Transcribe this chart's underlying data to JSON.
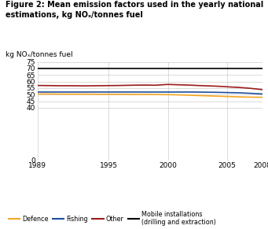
{
  "title": "Figure 2: Mean emission factors used in the yearly national\nestimations, kg NOₓ/tonnes fuel",
  "axis_label": "kg NOₓ/tonnes fuel",
  "xlim": [
    1989,
    2008
  ],
  "ylim": [
    0,
    75
  ],
  "yticks": [
    0,
    40,
    45,
    50,
    55,
    60,
    65,
    70,
    75
  ],
  "xticks": [
    1989,
    1995,
    2000,
    2005,
    2008
  ],
  "years": [
    1989,
    1990,
    1991,
    1992,
    1993,
    1994,
    1995,
    1996,
    1997,
    1998,
    1999,
    2000,
    2001,
    2002,
    2003,
    2004,
    2005,
    2006,
    2007,
    2008
  ],
  "defence": [
    50.5,
    50.5,
    50.4,
    50.4,
    50.4,
    50.3,
    50.3,
    50.3,
    50.2,
    50.2,
    50.1,
    50.0,
    49.8,
    49.5,
    49.2,
    48.9,
    48.6,
    48.3,
    48.1,
    48.0
  ],
  "fishing": [
    52.0,
    52.0,
    52.0,
    52.0,
    52.0,
    52.0,
    52.0,
    52.0,
    52.0,
    52.0,
    52.0,
    52.0,
    52.0,
    52.0,
    51.9,
    51.8,
    51.6,
    51.4,
    51.0,
    50.5
  ],
  "other": [
    57.0,
    56.9,
    56.8,
    56.8,
    56.7,
    56.8,
    56.9,
    57.0,
    57.2,
    57.3,
    57.2,
    57.8,
    57.5,
    57.2,
    56.8,
    56.5,
    56.0,
    55.5,
    54.8,
    53.8
  ],
  "mobile": [
    70.0,
    70.0,
    70.0,
    70.0,
    70.0,
    70.0,
    70.0,
    70.0,
    70.0,
    70.0,
    70.0,
    70.0,
    70.0,
    70.0,
    70.0,
    70.0,
    70.0,
    70.0,
    70.0,
    70.0
  ],
  "color_defence": "#f5a623",
  "color_fishing": "#1f4e9c",
  "color_other": "#9b1c1c",
  "color_mobile": "#000000",
  "legend_labels": [
    "Defence",
    "Fishing",
    "Other",
    "Mobile installations\n(drilling and extraction)"
  ],
  "background_color": "#ffffff",
  "grid_color": "#cccccc"
}
